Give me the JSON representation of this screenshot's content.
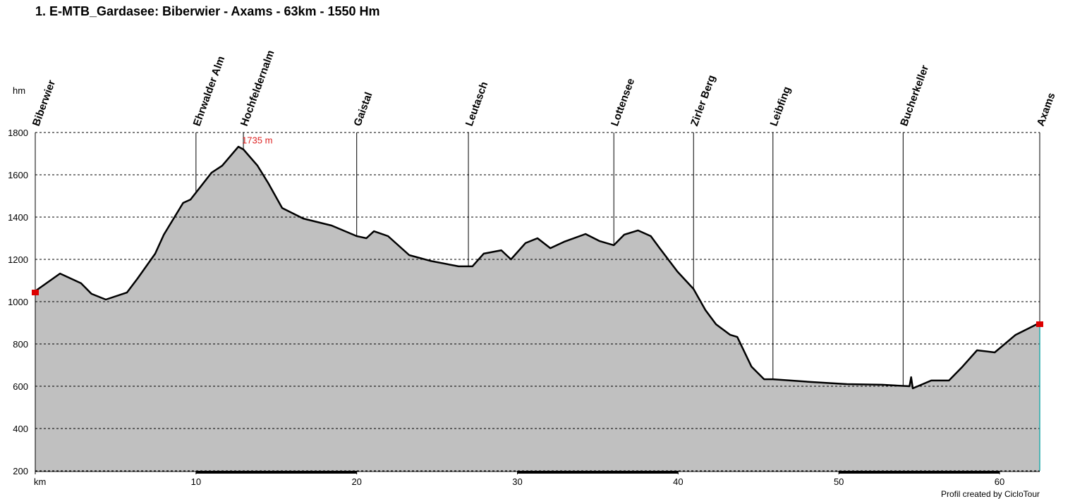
{
  "chart_data": {
    "type": "area",
    "title": "1. E-MTB_Gardasee: Biberwier - Axams - 63km - 1550 Hm",
    "y_axis_label": "hm",
    "footer": "Profil created by CicloTour",
    "color": "#c0c0c0",
    "line_color": "#000000",
    "grid": true,
    "xlim": [
      0,
      62.5
    ],
    "ylim": [
      200,
      1800
    ],
    "yticks": [
      200,
      400,
      600,
      800,
      1000,
      1200,
      1400,
      1600,
      1800
    ],
    "xticks": [
      {
        "value": 0,
        "label": "km"
      },
      10,
      20,
      30,
      40,
      50,
      60
    ],
    "x": [
      0,
      1.54,
      2.85,
      3.5,
      4.39,
      5.7,
      6.37,
      7.46,
      8.0,
      9.2,
      9.66,
      10.97,
      11.63,
      12.64,
      12.95,
      13.83,
      14.5,
      15.36,
      16.68,
      18.44,
      20.0,
      20.6,
      21.07,
      21.95,
      23.27,
      24.58,
      26.34,
      27.2,
      27.9,
      29.0,
      29.6,
      30.5,
      31.25,
      32.05,
      32.9,
      34.24,
      35.1,
      36.0,
      36.65,
      37.5,
      38.3,
      38.85,
      39.95,
      40.96,
      41.7,
      42.36,
      43.24,
      43.68,
      44.56,
      45.35,
      45.9,
      48.3,
      50.5,
      52.7,
      54.4,
      54.5,
      54.6,
      55.75,
      56.85,
      57.7,
      58.6,
      59.7,
      61.0,
      62.5
    ],
    "values": [
      1050,
      1133,
      1087,
      1037,
      1010,
      1043,
      1110,
      1227,
      1317,
      1467,
      1483,
      1610,
      1643,
      1733,
      1720,
      1643,
      1560,
      1443,
      1393,
      1360,
      1310,
      1300,
      1333,
      1310,
      1220,
      1193,
      1167,
      1167,
      1227,
      1243,
      1200,
      1277,
      1300,
      1253,
      1283,
      1320,
      1287,
      1267,
      1317,
      1337,
      1310,
      1253,
      1143,
      1060,
      960,
      893,
      843,
      833,
      693,
      633,
      633,
      620,
      610,
      607,
      600,
      643,
      590,
      627,
      627,
      693,
      770,
      760,
      843,
      900
    ],
    "waypoints": [
      {
        "name": "Biberwier",
        "km": 0
      },
      {
        "name": "Ehrwalder Alm",
        "km": 10.0
      },
      {
        "name": "Hochfeldernalm",
        "km": 12.95
      },
      {
        "name": "Gaistal",
        "km": 20.0
      },
      {
        "name": "Leutasch",
        "km": 26.95
      },
      {
        "name": "Lottensee",
        "km": 36.0
      },
      {
        "name": "Zirler Berg",
        "km": 40.96
      },
      {
        "name": "Leibfing",
        "km": 45.9
      },
      {
        "name": "Bucherkeller",
        "km": 54.0
      },
      {
        "name": "Axams",
        "km": 62.5
      }
    ],
    "annotation": {
      "label": "1735 m",
      "value": 1735,
      "x": 12.95
    }
  }
}
